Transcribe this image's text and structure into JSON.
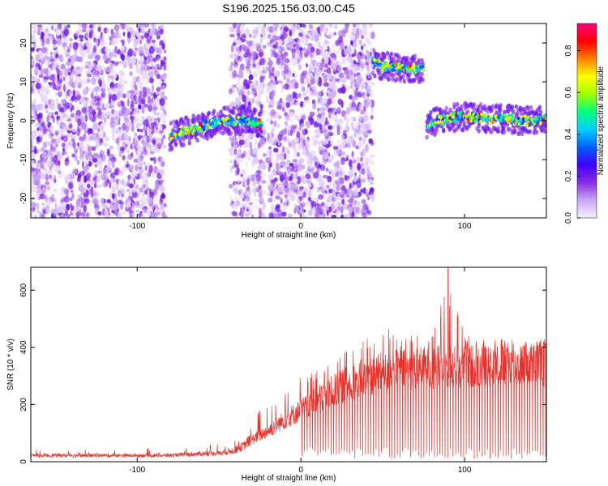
{
  "title": "S196.2025.156.03.00.C45",
  "chart_data": [
    {
      "type": "heatmap",
      "xlabel": "Height of straight line (km)",
      "ylabel": "Frequency (Hz)",
      "xlim": [
        -165,
        150
      ],
      "ylim": [
        -25,
        25
      ],
      "x_ticks": [
        -100,
        0,
        100
      ],
      "y_ticks": [
        -20,
        -10,
        0,
        10,
        20
      ],
      "colorbar": {
        "label": "Normalized spectral amplitude",
        "range": [
          0.0,
          0.93
        ],
        "ticks": [
          "0.0",
          "0.2",
          "0.4",
          "0.6",
          "0.8"
        ],
        "colormap": [
          "#f8f0ff",
          "#c9a8f5",
          "#8a2be2",
          "#4000ff",
          "#0060ff",
          "#00d0ff",
          "#00ff80",
          "#a0ff00",
          "#ffff00",
          "#ff8000",
          "#ff0000",
          "#ff0080"
        ]
      },
      "noise_regions": [
        [
          -165,
          -83
        ],
        [
          -43,
          -22
        ],
        [
          -20,
          44
        ]
      ],
      "signal_tracks": [
        {
          "x": [
            -80,
            -72,
            -64,
            -56,
            -48,
            -40,
            -32,
            -24
          ],
          "y": [
            -4,
            -3,
            -2,
            -1,
            0,
            0,
            0,
            -1
          ]
        },
        {
          "x": [
            44,
            50,
            56,
            62,
            68,
            75
          ],
          "y": [
            15,
            14,
            14,
            13.5,
            13.5,
            13
          ]
        },
        {
          "x": [
            77,
            85,
            95,
            105,
            115,
            125,
            135,
            145,
            150
          ],
          "y": [
            -1,
            0,
            1,
            1,
            0.5,
            0.5,
            0,
            0,
            0
          ]
        }
      ]
    },
    {
      "type": "line",
      "xlabel": "Height of straight line (km)",
      "ylabel": "SNR (10 * v/v)",
      "xlim": [
        -165,
        150
      ],
      "ylim": [
        0,
        680
      ],
      "x_ticks": [
        -100,
        0,
        100
      ],
      "y_ticks": [
        0,
        200,
        400,
        600
      ],
      "color": "#e8312b",
      "envelope": {
        "x": [
          -165,
          -80,
          -60,
          -50,
          -40,
          -35,
          -30,
          -20,
          -10,
          0,
          10,
          20,
          30,
          40,
          50,
          60,
          70,
          80,
          90,
          100,
          110,
          120,
          130,
          140,
          150
        ],
        "base": [
          22,
          22,
          28,
          30,
          40,
          55,
          80,
          110,
          150,
          185,
          220,
          255,
          285,
          305,
          320,
          330,
          335,
          340,
          340,
          340,
          345,
          345,
          345,
          350,
          350
        ],
        "peak": [
          50,
          45,
          60,
          65,
          80,
          120,
          160,
          200,
          250,
          300,
          330,
          370,
          400,
          430,
          520,
          430,
          460,
          480,
          680,
          450,
          430,
          430,
          430,
          430,
          430
        ]
      }
    }
  ]
}
